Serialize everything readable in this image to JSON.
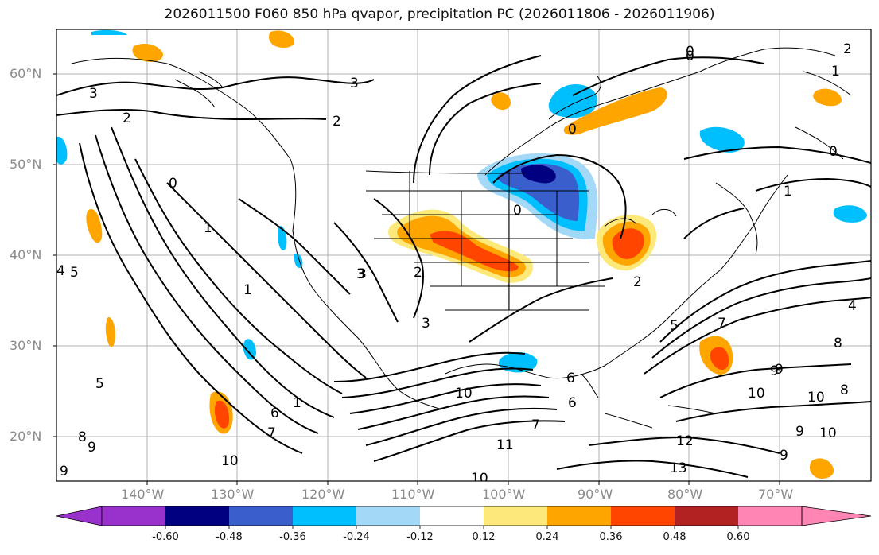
{
  "title": "2026011500 F060 850 hPa qvapor, precipitation PC (2026011806 - 2026011906)",
  "lat_ticks": [
    "60°N",
    "50°N",
    "40°N",
    "30°N",
    "20°N"
  ],
  "lon_ticks": [
    "140°W",
    "130°W",
    "120°W",
    "110°W",
    "100°W",
    "90°W",
    "80°W",
    "70°W"
  ],
  "colorbar": {
    "labels": [
      "-0.60",
      "-0.48",
      "-0.36",
      "-0.24",
      "-0.12",
      "0.12",
      "0.24",
      "0.36",
      "0.48",
      "0.60"
    ],
    "colors": [
      "#9932cc",
      "#000080",
      "#3a5fcd",
      "#00bfff",
      "#a4d8f7",
      "#ffffff",
      "#fde97a",
      "#ffa500",
      "#ff4500",
      "#b22222",
      "#ff85b4"
    ]
  },
  "contour_labels": [
    "3",
    "2",
    "3",
    "2",
    "1",
    "0",
    "0",
    "1",
    "2",
    "3",
    "3",
    "4",
    "5",
    "5",
    "6",
    "7",
    "8",
    "9",
    "9",
    "10",
    "10",
    "11",
    "12",
    "13",
    "10",
    "10",
    "9",
    "8",
    "6",
    "7",
    "0",
    "0",
    "0",
    "1",
    "2",
    "2",
    "4",
    "5",
    "6",
    "7",
    "8",
    "9",
    "10",
    "9",
    "9",
    "10",
    "1",
    "0",
    "1",
    "3"
  ]
}
